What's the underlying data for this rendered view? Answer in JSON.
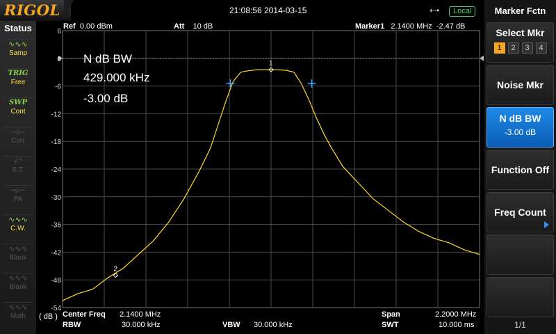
{
  "header": {
    "brand": "RIGOL",
    "datetime": "21:08:56 2014-03-15",
    "usb_icon": "usb-icon",
    "remote_status": "Local"
  },
  "status_panel": {
    "title": "Status",
    "items": [
      {
        "icon": "wave-icon",
        "label": "Samp",
        "state": "on"
      },
      {
        "icon": "TRIG",
        "label": "Free",
        "state": "trig"
      },
      {
        "icon": "SWP",
        "label": "Cont",
        "state": "trig"
      },
      {
        "icon": "corr-icon",
        "label": "Corr",
        "state": "off"
      },
      {
        "icon": "tracking-icon",
        "label": "S.T.",
        "state": "off"
      },
      {
        "icon": "preamp-icon",
        "label": "PA",
        "state": "off"
      },
      {
        "icon": "cw-icon",
        "label": "C.W.",
        "state": "on"
      },
      {
        "icon": "wave-icon",
        "label": "Blank",
        "state": "off"
      },
      {
        "icon": "wave-icon",
        "label": "Blank",
        "state": "off"
      },
      {
        "icon": "wave-icon",
        "label": "Math",
        "state": "off"
      }
    ],
    "unit_label": "( dB )"
  },
  "plot_header": {
    "ref_key": "Ref",
    "ref_value": "0.00 dBm",
    "att_key": "Att",
    "att_value": "10 dB",
    "marker_key": "Marker1",
    "marker_freq": "2.1400 MHz",
    "marker_amp": "-2.47 dB"
  },
  "ndb_readout": {
    "title": "N dB BW",
    "bandwidth": "429.000 kHz",
    "level": "-3.00 dB"
  },
  "bottom": {
    "center_key": "Center Freq",
    "center_value": "2.1400 MHz",
    "span_key": "Span",
    "span_value": "2.2000 MHz",
    "rbw_key": "RBW",
    "rbw_value": "30.000 kHz",
    "vbw_key": "VBW",
    "vbw_value": "30.000 kHz",
    "swt_key": "SWT",
    "swt_value": "10.000 ms"
  },
  "menu": {
    "title": "Marker Fctn",
    "buttons": [
      {
        "label": "Select Mkr",
        "markers": [
          "1",
          "2",
          "3",
          "4"
        ],
        "selected": "1"
      },
      {
        "label": "Noise Mkr"
      },
      {
        "label": "N dB BW",
        "value": "-3.00 dB",
        "active": true
      },
      {
        "label": "Function Off"
      },
      {
        "label": "Freq Count",
        "has_submenu": true
      },
      {
        "label": ""
      },
      {
        "label": ""
      }
    ],
    "page": "1/1"
  },
  "colors": {
    "trace": "#ffd92a",
    "grid": "#4a4a4a",
    "accent_blue": "#1e8ae8",
    "logo": "#f5a623",
    "ndb_marker": "#3aa8ff"
  },
  "chart_data": {
    "type": "line",
    "x_unit": "MHz",
    "y_unit": "dB",
    "xlim": [
      1.04,
      3.24
    ],
    "ylim": [
      -54,
      6
    ],
    "y_ticks": [
      "6",
      "0",
      "-6",
      "-12",
      "-18",
      "-24",
      "-30",
      "-36",
      "-42",
      "-48",
      "-54"
    ],
    "series": [
      {
        "x": [
          1.04,
          1.12,
          1.2,
          1.28,
          1.36,
          1.44,
          1.52,
          1.6,
          1.68,
          1.76,
          1.82,
          1.86,
          1.9,
          1.94,
          1.98,
          2.02,
          2.06,
          2.1,
          2.14,
          2.18,
          2.22,
          2.26,
          2.3,
          2.34,
          2.38,
          2.42,
          2.46,
          2.52,
          2.6,
          2.68,
          2.76,
          2.84,
          2.92,
          3.0,
          3.08,
          3.16,
          3.24
        ],
        "y": [
          -52.5,
          -51.0,
          -50.0,
          -47.5,
          -45.5,
          -42.5,
          -39.5,
          -35.5,
          -30.5,
          -24.5,
          -19.5,
          -14.5,
          -9.5,
          -5.0,
          -3.0,
          -2.7,
          -2.5,
          -2.45,
          -2.47,
          -2.5,
          -2.6,
          -3.0,
          -5.5,
          -9.0,
          -13.0,
          -16.5,
          -19.5,
          -23.5,
          -27.0,
          -30.5,
          -33.0,
          -35.5,
          -37.5,
          -39.0,
          -40.0,
          -41.5,
          -42.5
        ]
      }
    ],
    "markers": [
      {
        "label": "1",
        "x": 2.14,
        "y": -2.47
      },
      {
        "label": "2",
        "x": 1.32,
        "y": -47.0
      }
    ],
    "ndb_points": [
      {
        "x": 1.9255,
        "y": -5.47
      },
      {
        "x": 2.3545,
        "y": -5.47
      }
    ]
  }
}
